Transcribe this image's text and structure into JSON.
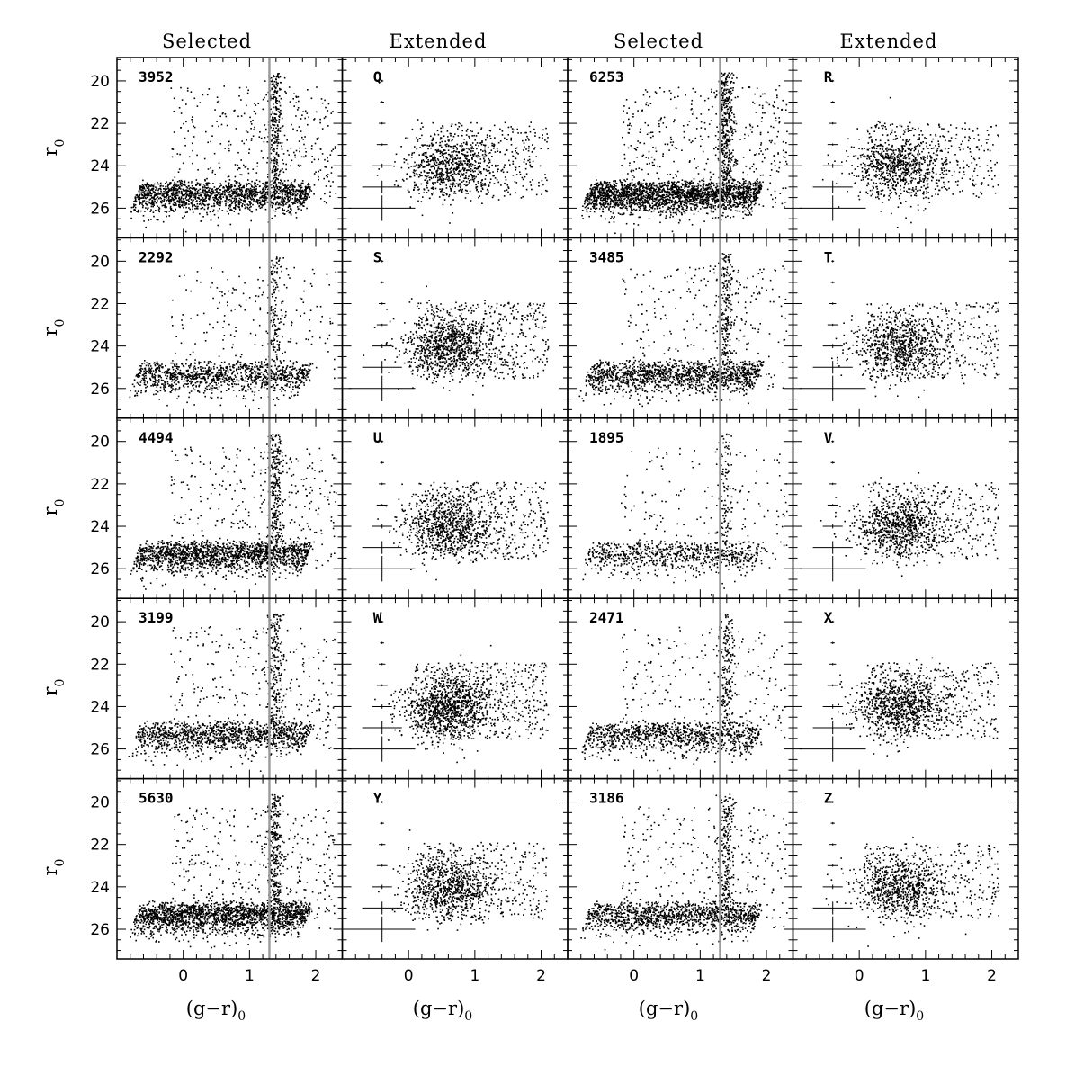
{
  "column_titles": [
    "Selected",
    "Extended",
    "Selected",
    "Extended"
  ],
  "x_axis_label": "(g−r)",
  "x_axis_subscript": "0",
  "y_axis_label": "r",
  "y_axis_subscript": "0",
  "chart_data": {
    "type": "scatter",
    "grid": false,
    "xlim": [
      -1.0,
      2.4
    ],
    "ylim": [
      27.4,
      18.9
    ],
    "x_ticks": [
      "0",
      "1",
      "2"
    ],
    "x_tick_values": [
      0,
      1,
      2
    ],
    "y_ticks": [
      "20",
      "22",
      "24",
      "26"
    ],
    "y_tick_values": [
      20,
      22,
      24,
      26
    ],
    "selection_line_color": [
      1.3
    ],
    "colors": {
      "points": "#000000",
      "selection_line": "#9a9a9a",
      "frame": "#000000"
    },
    "error_bars": {
      "x": -0.4,
      "mags": [
        20,
        21,
        22,
        23,
        24,
        25,
        26
      ],
      "color_err": [
        0.02,
        0.03,
        0.05,
        0.08,
        0.15,
        0.3,
        0.5
      ],
      "mag_err": [
        0.02,
        0.02,
        0.03,
        0.05,
        0.1,
        0.3,
        0.6
      ]
    },
    "panels": [
      {
        "row": 0,
        "col": 0,
        "kind": "Selected",
        "label": "3952",
        "n": 2200,
        "c1": 1
      },
      {
        "row": 0,
        "col": 1,
        "kind": "Extended",
        "label": "Q",
        "n": 1000
      },
      {
        "row": 0,
        "col": 2,
        "kind": "Selected",
        "label": "6253",
        "n": 3000,
        "c1": 1
      },
      {
        "row": 0,
        "col": 3,
        "kind": "Extended",
        "label": "R",
        "n": 1000
      },
      {
        "row": 1,
        "col": 0,
        "kind": "Selected",
        "label": "2292",
        "n": 1400,
        "c1": 1
      },
      {
        "row": 1,
        "col": 1,
        "kind": "Extended",
        "label": "S",
        "n": 1300
      },
      {
        "row": 1,
        "col": 2,
        "kind": "Selected",
        "label": "3485",
        "n": 1800,
        "c1": 1
      },
      {
        "row": 1,
        "col": 3,
        "kind": "Extended",
        "label": "T",
        "n": 1100
      },
      {
        "row": 2,
        "col": 0,
        "kind": "Selected",
        "label": "4494",
        "n": 2200,
        "c1": 1
      },
      {
        "row": 2,
        "col": 1,
        "kind": "Extended",
        "label": "U",
        "n": 1200
      },
      {
        "row": 2,
        "col": 2,
        "kind": "Selected",
        "label": "1895",
        "n": 1000,
        "c1": 1
      },
      {
        "row": 2,
        "col": 3,
        "kind": "Extended",
        "label": "V",
        "n": 1100
      },
      {
        "row": 3,
        "col": 0,
        "kind": "Selected",
        "label": "3199",
        "n": 1700,
        "c1": 1
      },
      {
        "row": 3,
        "col": 1,
        "kind": "Extended",
        "label": "W",
        "n": 1500
      },
      {
        "row": 3,
        "col": 2,
        "kind": "Selected",
        "label": "2471",
        "n": 1400,
        "c1": 1
      },
      {
        "row": 3,
        "col": 3,
        "kind": "Extended",
        "label": "X",
        "n": 1200
      },
      {
        "row": 4,
        "col": 0,
        "kind": "Selected",
        "label": "5630",
        "n": 2500,
        "c1": 1
      },
      {
        "row": 4,
        "col": 1,
        "kind": "Extended",
        "label": "Y",
        "n": 1100
      },
      {
        "row": 4,
        "col": 2,
        "kind": "Selected",
        "label": "3186",
        "n": 1700,
        "c1": 1
      },
      {
        "row": 4,
        "col": 3,
        "kind": "Extended",
        "label": "Z",
        "n": 1000
      }
    ]
  }
}
